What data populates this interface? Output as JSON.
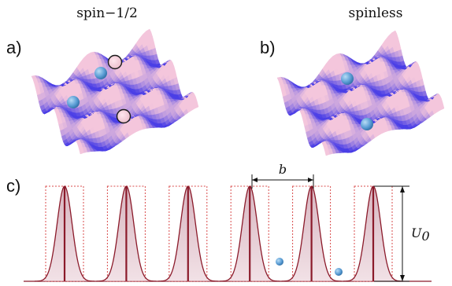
{
  "headings": {
    "spin_half": "spin−1/2",
    "spinless": "spinless"
  },
  "panel_labels": {
    "a": "a)",
    "b": "b)",
    "c": "c)"
  },
  "annotations": {
    "lattice_spacing": "b",
    "depth_base": "U",
    "depth_subscript": "0"
  },
  "colors": {
    "surface_pink": "#f4c6dc",
    "surface_blue": "#4a3ee6",
    "atom_blue": "#5d9fd6",
    "hole_outline": "#1a1a1a",
    "peak_line": "#8b1a2a",
    "peak_fill": "#c89aa8",
    "box_dotted": "#d94b4b"
  },
  "peak_count": 6
}
